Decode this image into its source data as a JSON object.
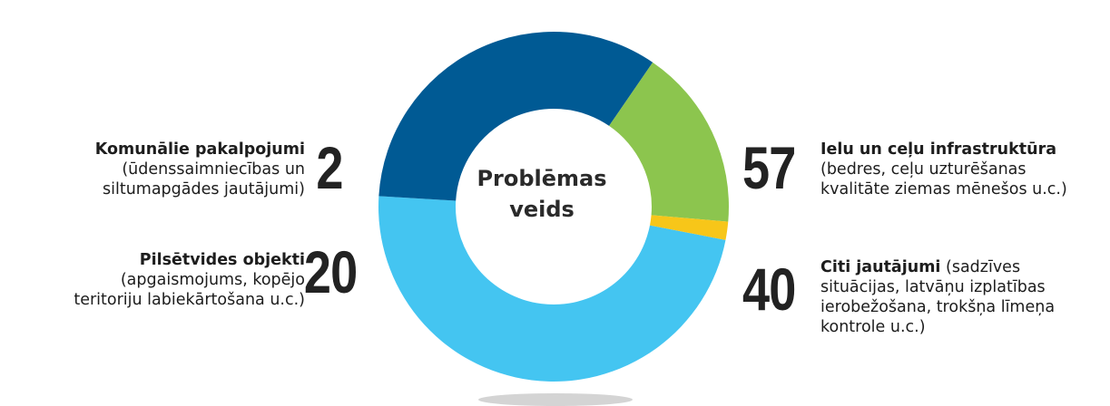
{
  "center_title": [
    "Problēmas",
    "veids"
  ],
  "chart_data": {
    "type": "pie",
    "variant": "donut",
    "categories": [
      "Ielu un ceļu infrastruktūra",
      "Citi jautājumi",
      "Pilsētvides objekti",
      "Komunālie pakalpojumi"
    ],
    "values": [
      57,
      40,
      20,
      2
    ],
    "colors": [
      "#44c5f1",
      "#005a94",
      "#8cc54e",
      "#f7c619"
    ]
  },
  "labels": {
    "infra": {
      "value": "57",
      "title": "Ielu un ceļu infrastruktūra",
      "desc_1": "(bedres, ceļu uzturēšanas",
      "desc_2": "kvalitāte ziemas mēnešos u.c.)"
    },
    "citi": {
      "value": "40",
      "title": "Citi jautājumi",
      "desc_1": " (sadzīves",
      "desc_2": "situācijas, latvāņu izplatības",
      "desc_3": "ierobežošana, trokšņa līmeņa",
      "desc_4": "kontrole u.c.)"
    },
    "pilsetvide": {
      "value": "20",
      "title": "Pilsētvides objekti",
      "desc_1": "(apgaismojums, kopējo",
      "desc_2": "teritoriju labiekārtošana u.c.)"
    },
    "komunalie": {
      "value": "2",
      "title": "Komunālie pakalpojumi",
      "desc_1": "(ūdenssaimniecības un",
      "desc_2": "siltumapgādes jautājumi)"
    }
  }
}
